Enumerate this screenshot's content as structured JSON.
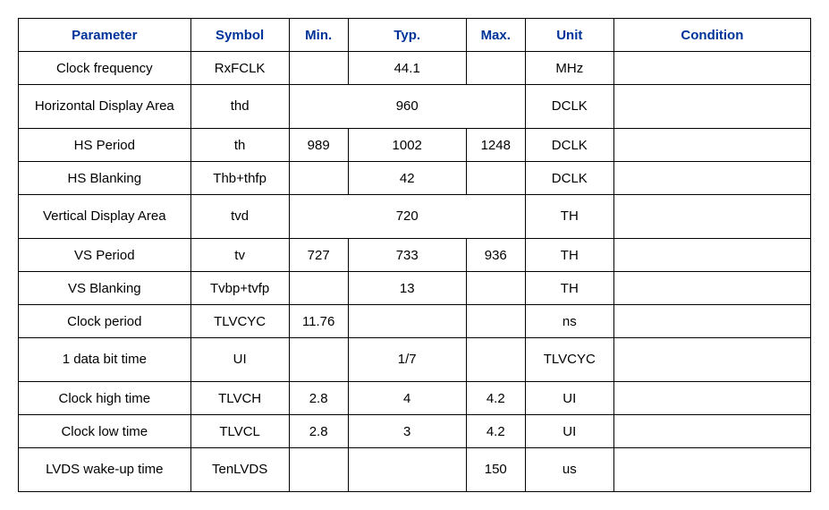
{
  "columns": [
    "Parameter",
    "Symbol",
    "Min.",
    "Typ.",
    "Max.",
    "Unit",
    "Condition"
  ],
  "rows": [
    {
      "param": "Clock frequency",
      "sym": "RxFCLK",
      "min": "",
      "typ": "44.1",
      "max": "",
      "unit": "MHz",
      "cond": "",
      "merged": false,
      "tall": false
    },
    {
      "param": "Horizontal Display Area",
      "sym": "thd",
      "min": "",
      "typ": "960",
      "max": "",
      "unit": "DCLK",
      "cond": "",
      "merged": true,
      "tall": true
    },
    {
      "param": "HS Period",
      "sym": "th",
      "min": "989",
      "typ": "1002",
      "max": "1248",
      "unit": "DCLK",
      "cond": "",
      "merged": false,
      "tall": false
    },
    {
      "param": "HS Blanking",
      "sym": "Thb+thfp",
      "min": "",
      "typ": "42",
      "max": "",
      "unit": "DCLK",
      "cond": "",
      "merged": false,
      "tall": false
    },
    {
      "param": "Vertical Display Area",
      "sym": "tvd",
      "min": "",
      "typ": "720",
      "max": "",
      "unit": "TH",
      "cond": "",
      "merged": true,
      "tall": true
    },
    {
      "param": "VS Period",
      "sym": "tv",
      "min": "727",
      "typ": "733",
      "max": "936",
      "unit": "TH",
      "cond": "",
      "merged": false,
      "tall": false
    },
    {
      "param": "VS Blanking",
      "sym": "Tvbp+tvfp",
      "min": "",
      "typ": "13",
      "max": "",
      "unit": "TH",
      "cond": "",
      "merged": false,
      "tall": false
    },
    {
      "param": "Clock period",
      "sym": "TLVCYC",
      "min": "11.76",
      "typ": "",
      "max": "",
      "unit": "ns",
      "cond": "",
      "merged": false,
      "tall": false
    },
    {
      "param": "1 data bit time",
      "sym": "UI",
      "min": "",
      "typ": "1/7",
      "max": "",
      "unit": "TLVCYC",
      "cond": "",
      "merged": false,
      "tall": true
    },
    {
      "param": "Clock high time",
      "sym": "TLVCH",
      "min": "2.8",
      "typ": "4",
      "max": "4.2",
      "unit": "UI",
      "cond": "",
      "merged": false,
      "tall": false
    },
    {
      "param": "Clock low time",
      "sym": "TLVCL",
      "min": "2.8",
      "typ": "3",
      "max": "4.2",
      "unit": "UI",
      "cond": "",
      "merged": false,
      "tall": false
    },
    {
      "param": "LVDS wake-up time",
      "sym": "TenLVDS",
      "min": "",
      "typ": "",
      "max": "150",
      "unit": "us",
      "cond": "",
      "merged": false,
      "tall": true
    }
  ]
}
